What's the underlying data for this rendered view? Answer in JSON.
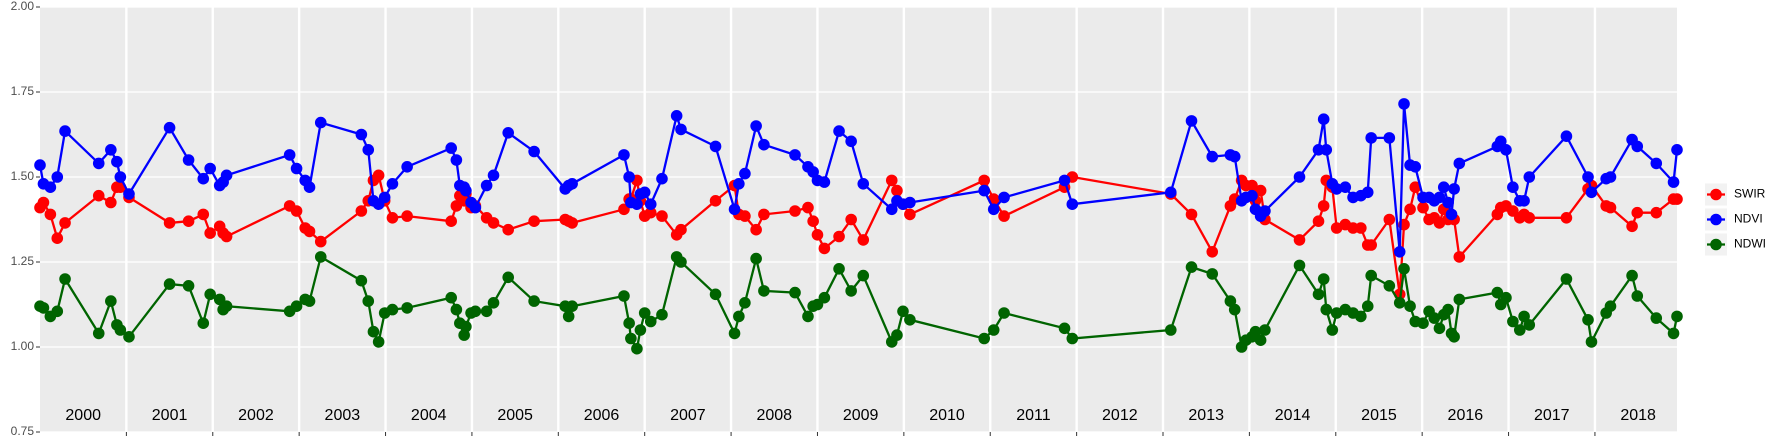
{
  "chart_data": {
    "type": "line",
    "x": [
      2000.0,
      2000.04,
      2000.12,
      2000.2,
      2000.29,
      2000.68,
      2000.82,
      2000.89,
      2000.93,
      2001.03,
      2001.5,
      2001.72,
      2001.89,
      2001.97,
      2002.08,
      2002.12,
      2002.16,
      2002.89,
      2002.97,
      2003.07,
      2003.12,
      2003.25,
      2003.72,
      2003.8,
      2003.86,
      2003.92,
      2003.99,
      2004.08,
      2004.25,
      2004.76,
      2004.82,
      2004.86,
      2004.91,
      2004.93,
      2004.99,
      2005.04,
      2005.17,
      2005.25,
      2005.42,
      2005.72,
      2006.08,
      2006.12,
      2006.16,
      2006.76,
      2006.82,
      2006.84,
      2006.91,
      2006.95,
      2007.0,
      2007.07,
      2007.2,
      2007.37,
      2007.42,
      2007.82,
      2008.04,
      2008.09,
      2008.16,
      2008.29,
      2008.38,
      2008.74,
      2008.89,
      2008.95,
      2009.0,
      2009.08,
      2009.25,
      2009.39,
      2009.53,
      2009.86,
      2009.92,
      2009.99,
      2010.07,
      2010.93,
      2011.04,
      2011.16,
      2011.86,
      2011.95,
      2013.09,
      2013.33,
      2013.57,
      2013.78,
      2013.83,
      2013.91,
      2013.96,
      2014.03,
      2014.07,
      2014.13,
      2014.18,
      2014.58,
      2014.8,
      2014.86,
      2014.89,
      2014.96,
      2015.01,
      2015.11,
      2015.2,
      2015.29,
      2015.37,
      2015.41,
      2015.62,
      2015.74,
      2015.79,
      2015.86,
      2015.92,
      2016.01,
      2016.08,
      2016.14,
      2016.2,
      2016.25,
      2016.3,
      2016.34,
      2016.37,
      2016.43,
      2016.87,
      2016.91,
      2016.97,
      2017.05,
      2017.13,
      2017.18,
      2017.24,
      2017.67,
      2017.92,
      2017.96,
      2018.13,
      2018.18,
      2018.43,
      2018.49,
      2018.71,
      2018.91,
      2018.95
    ],
    "series": [
      {
        "name": "SWIR",
        "color": "#ff0000",
        "values": [
          1.41,
          1.425,
          1.39,
          1.32,
          1.365,
          1.445,
          1.425,
          1.47,
          1.47,
          1.44,
          1.365,
          1.37,
          1.39,
          1.335,
          1.355,
          1.335,
          1.325,
          1.415,
          1.4,
          1.35,
          1.34,
          1.31,
          1.4,
          1.43,
          1.49,
          1.505,
          1.43,
          1.38,
          1.385,
          1.37,
          1.415,
          1.445,
          1.43,
          1.45,
          1.41,
          1.415,
          1.38,
          1.365,
          1.345,
          1.37,
          1.375,
          1.37,
          1.365,
          1.405,
          1.435,
          1.435,
          1.49,
          1.43,
          1.385,
          1.395,
          1.385,
          1.33,
          1.345,
          1.43,
          1.475,
          1.39,
          1.385,
          1.345,
          1.39,
          1.4,
          1.41,
          1.37,
          1.33,
          1.29,
          1.325,
          1.375,
          1.315,
          1.49,
          1.46,
          1.42,
          1.39,
          1.49,
          1.435,
          1.385,
          1.47,
          1.5,
          1.45,
          1.39,
          1.28,
          1.415,
          1.435,
          1.49,
          1.475,
          1.475,
          1.43,
          1.46,
          1.375,
          1.315,
          1.37,
          1.415,
          1.49,
          1.47,
          1.35,
          1.36,
          1.35,
          1.35,
          1.3,
          1.3,
          1.375,
          1.155,
          1.36,
          1.405,
          1.47,
          1.41,
          1.375,
          1.38,
          1.365,
          1.405,
          1.375,
          1.385,
          1.375,
          1.265,
          1.39,
          1.41,
          1.415,
          1.4,
          1.38,
          1.39,
          1.38,
          1.38,
          1.465,
          1.475,
          1.415,
          1.41,
          1.355,
          1.395,
          1.395,
          1.435,
          1.435
        ]
      },
      {
        "name": "NDVI",
        "color": "#0000ff",
        "values": [
          1.535,
          1.48,
          1.47,
          1.5,
          1.635,
          1.54,
          1.58,
          1.545,
          1.5,
          1.45,
          1.645,
          1.55,
          1.495,
          1.525,
          1.475,
          1.485,
          1.505,
          1.565,
          1.525,
          1.49,
          1.47,
          1.66,
          1.625,
          1.58,
          1.43,
          1.42,
          1.44,
          1.48,
          1.53,
          1.585,
          1.55,
          1.475,
          1.47,
          1.46,
          1.425,
          1.41,
          1.475,
          1.505,
          1.63,
          1.575,
          1.465,
          1.475,
          1.48,
          1.565,
          1.5,
          1.425,
          1.42,
          1.45,
          1.455,
          1.42,
          1.495,
          1.68,
          1.64,
          1.59,
          1.405,
          1.48,
          1.51,
          1.65,
          1.595,
          1.565,
          1.53,
          1.515,
          1.49,
          1.485,
          1.635,
          1.605,
          1.48,
          1.405,
          1.43,
          1.42,
          1.425,
          1.46,
          1.405,
          1.44,
          1.49,
          1.42,
          1.455,
          1.665,
          1.56,
          1.565,
          1.56,
          1.43,
          1.44,
          1.445,
          1.405,
          1.385,
          1.4,
          1.5,
          1.58,
          1.67,
          1.58,
          1.48,
          1.465,
          1.47,
          1.44,
          1.445,
          1.455,
          1.615,
          1.615,
          1.28,
          1.715,
          1.535,
          1.53,
          1.44,
          1.44,
          1.43,
          1.44,
          1.47,
          1.425,
          1.39,
          1.465,
          1.54,
          1.59,
          1.605,
          1.58,
          1.47,
          1.43,
          1.43,
          1.5,
          1.62,
          1.5,
          1.455,
          1.495,
          1.5,
          1.61,
          1.59,
          1.54,
          1.485,
          1.58
        ]
      },
      {
        "name": "NDWI",
        "color": "#006400",
        "values": [
          1.12,
          1.115,
          1.09,
          1.105,
          1.2,
          1.04,
          1.135,
          1.065,
          1.05,
          1.03,
          1.185,
          1.18,
          1.07,
          1.155,
          1.14,
          1.11,
          1.12,
          1.105,
          1.12,
          1.14,
          1.135,
          1.265,
          1.195,
          1.135,
          1.045,
          1.015,
          1.1,
          1.11,
          1.115,
          1.145,
          1.11,
          1.07,
          1.035,
          1.06,
          1.1,
          1.105,
          1.105,
          1.13,
          1.205,
          1.135,
          1.12,
          1.09,
          1.12,
          1.15,
          1.07,
          1.025,
          0.995,
          1.05,
          1.1,
          1.075,
          1.095,
          1.265,
          1.25,
          1.155,
          1.04,
          1.09,
          1.13,
          1.26,
          1.165,
          1.16,
          1.09,
          1.12,
          1.125,
          1.145,
          1.23,
          1.165,
          1.21,
          1.015,
          1.035,
          1.105,
          1.08,
          1.025,
          1.05,
          1.1,
          1.055,
          1.025,
          1.05,
          1.235,
          1.215,
          1.135,
          1.11,
          1,
          1.02,
          1.03,
          1.045,
          1.02,
          1.05,
          1.24,
          1.155,
          1.2,
          1.11,
          1.05,
          1.1,
          1.11,
          1.1,
          1.09,
          1.12,
          1.21,
          1.18,
          1.13,
          1.23,
          1.12,
          1.075,
          1.07,
          1.105,
          1.085,
          1.055,
          1.095,
          1.11,
          1.04,
          1.03,
          1.14,
          1.16,
          1.125,
          1.145,
          1.075,
          1.05,
          1.09,
          1.065,
          1.2,
          1.08,
          1.015,
          1.1,
          1.12,
          1.21,
          1.15,
          1.085,
          1.04,
          1.09
        ]
      }
    ],
    "xlim": [
      2000,
      2018.95
    ],
    "xticks": [
      2001,
      2002,
      2003,
      2004,
      2005,
      2006,
      2007,
      2008,
      2009,
      2010,
      2011,
      2012,
      2013,
      2014,
      2015,
      2016,
      2017,
      2018
    ],
    "year_labels": [
      2000,
      2001,
      2002,
      2003,
      2004,
      2005,
      2006,
      2007,
      2008,
      2009,
      2010,
      2011,
      2012,
      2013,
      2014,
      2015,
      2016,
      2017,
      2018
    ],
    "ylim": [
      0.75,
      2
    ],
    "yticks": [
      0.75,
      {
        "value": 1,
        "label": "1.00"
      },
      1.25,
      {
        "value": 1.5,
        "label": "1.50"
      },
      1.75,
      {
        "value": 2,
        "label": "2.00"
      }
    ],
    "grid": true,
    "legend": "right"
  }
}
